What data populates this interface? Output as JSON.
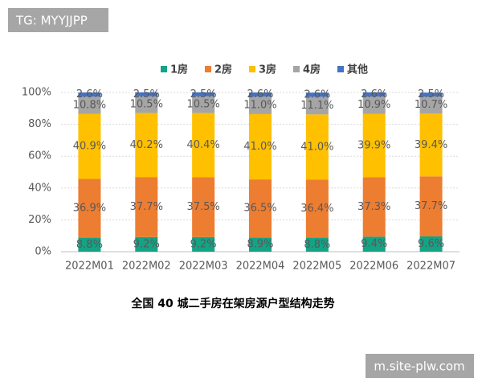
{
  "chart_data": {
    "type": "stacked_bar",
    "title": "全国 40 城二手房在架房源户型结构走势",
    "categories": [
      "2022M01",
      "2022M02",
      "2022M03",
      "2022M04",
      "2022M05",
      "2022M06",
      "2022M07"
    ],
    "series": [
      {
        "name": "1房",
        "color": "#13a385",
        "values": [
          8.8,
          9.2,
          9.2,
          8.9,
          8.8,
          9.4,
          9.6
        ],
        "value_labels": [
          "8.8%",
          "9.2%",
          "9.2%",
          "8.9%",
          "8.8%",
          "9.4%",
          "9.6%"
        ]
      },
      {
        "name": "2房",
        "color": "#ed7d31",
        "values": [
          36.9,
          37.7,
          37.5,
          36.5,
          36.4,
          37.3,
          37.7
        ],
        "value_labels": [
          "36.9%",
          "37.7%",
          "37.5%",
          "36.5%",
          "36.4%",
          "37.3%",
          "37.7%"
        ]
      },
      {
        "name": "3房",
        "color": "#ffc000",
        "values": [
          40.9,
          40.2,
          40.4,
          41.0,
          41.0,
          39.9,
          39.4
        ],
        "value_labels": [
          "40.9%",
          "40.2%",
          "40.4%",
          "41.0%",
          "41.0%",
          "39.9%",
          "39.4%"
        ]
      },
      {
        "name": "4房",
        "color": "#a5a5a5",
        "values": [
          10.8,
          10.5,
          10.5,
          11.0,
          11.1,
          10.9,
          10.7
        ],
        "value_labels": [
          "10.8%",
          "10.5%",
          "10.5%",
          "11.0%",
          "11.1%",
          "10.9%",
          "10.7%"
        ]
      },
      {
        "name": "其他",
        "color": "#4472c4",
        "values": [
          2.6,
          2.5,
          2.5,
          2.6,
          2.6,
          2.6,
          2.5
        ],
        "value_labels": [
          "2.6%",
          "2.5%",
          "2.5%",
          "2.6%",
          "2.6%",
          "2.6%",
          "2.5%"
        ]
      }
    ],
    "ylim": [
      0,
      100
    ],
    "yticks": [
      {
        "value": 0,
        "label": "0%"
      },
      {
        "value": 20,
        "label": "20%"
      },
      {
        "value": 40,
        "label": "40%"
      },
      {
        "value": 60,
        "label": "60%"
      },
      {
        "value": 80,
        "label": "80%"
      },
      {
        "value": 100,
        "label": "100%"
      }
    ],
    "grid": true,
    "legend": "top"
  },
  "watermarks": [
    "TG: MYYJJPP",
    "m.site-plw.com"
  ]
}
